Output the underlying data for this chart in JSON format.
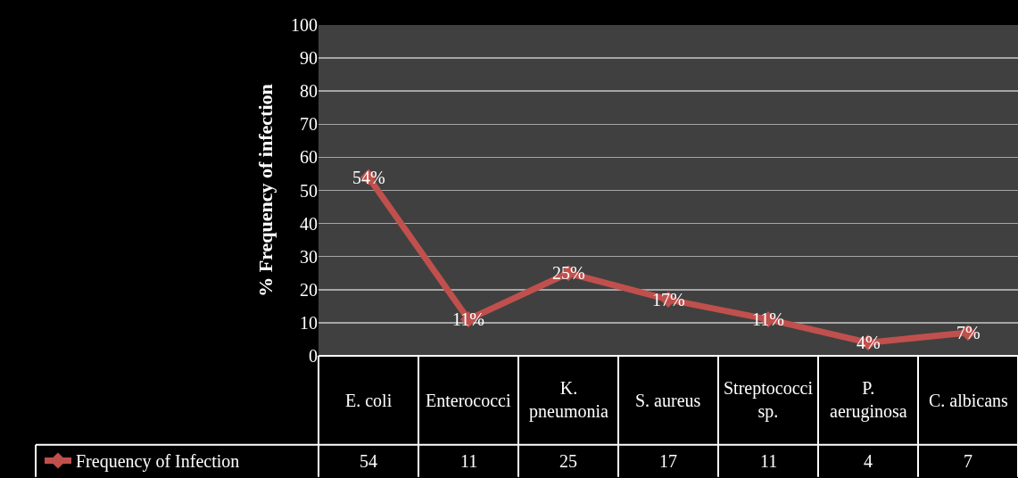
{
  "chart_data": {
    "type": "line",
    "ylabel": "% Frequency of infection",
    "categories": [
      "E. coli",
      "Enterococci",
      "K. pneumonia",
      "S. aureus",
      "Streptococci sp.",
      "P. aeruginosa",
      "C. albicans"
    ],
    "series": [
      {
        "name": "Frequency of Infection",
        "color": "#c0504d",
        "values": [
          54,
          11,
          25,
          17,
          11,
          4,
          7
        ]
      }
    ],
    "annotations": [
      {
        "text": "54%",
        "x": "E. coli",
        "y": 54
      },
      {
        "text": "11%",
        "x": "Enterococci",
        "y": 11
      },
      {
        "text": "25%",
        "x": "K. pneumonia",
        "y": 25
      },
      {
        "text": "17%",
        "x": "S. aureus",
        "y": 17
      },
      {
        "text": "11%",
        "x": "Streptococci sp.",
        "y": 11
      },
      {
        "text": "4%",
        "x": "P. aeruginosa",
        "y": 4
      },
      {
        "text": "7%",
        "x": "C. albicans",
        "y": 7
      }
    ],
    "ylim": [
      0,
      100
    ],
    "yticks": [
      0,
      10,
      20,
      30,
      40,
      50,
      60,
      70,
      80,
      90,
      100
    ],
    "grid": "y",
    "legend": "bottom left",
    "marker": "diamond",
    "line_style": "solid",
    "data_labels": true
  }
}
